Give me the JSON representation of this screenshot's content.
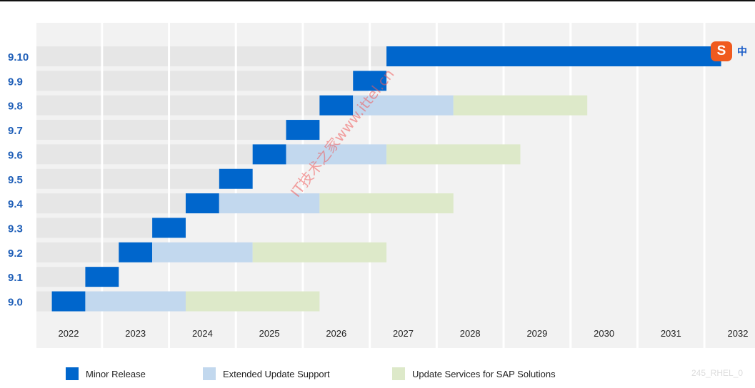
{
  "chart_data": {
    "type": "gantt",
    "title": "",
    "xlabel": "",
    "ylabel": "",
    "x_ticks": [
      "2022",
      "2023",
      "2024",
      "2025",
      "2026",
      "2027",
      "2028",
      "2029",
      "2030",
      "2031",
      "2032"
    ],
    "xlim": [
      2022,
      2032
    ],
    "grid": true,
    "categories": [
      "9.10",
      "9.9",
      "9.8",
      "9.7",
      "9.6",
      "9.5",
      "9.4",
      "9.3",
      "9.2",
      "9.1",
      "9.0"
    ],
    "series": [
      {
        "name": "Minor Release",
        "color": "#0066cc",
        "spans": [
          [
            "9.10",
            2026.75,
            2031.75
          ],
          [
            "9.9",
            2026.25,
            2026.75
          ],
          [
            "9.8",
            2025.75,
            2026.25
          ],
          [
            "9.7",
            2025.25,
            2025.75
          ],
          [
            "9.6",
            2024.75,
            2025.25
          ],
          [
            "9.5",
            2024.25,
            2024.75
          ],
          [
            "9.4",
            2023.75,
            2024.25
          ],
          [
            "9.3",
            2023.25,
            2023.75
          ],
          [
            "9.2",
            2022.75,
            2023.25
          ],
          [
            "9.1",
            2022.25,
            2022.75
          ],
          [
            "9.0",
            2021.75,
            2022.25
          ]
        ]
      },
      {
        "name": "Extended Update Support",
        "color": "#c2d8ee",
        "spans": [
          [
            "9.8",
            2026.25,
            2027.75
          ],
          [
            "9.6",
            2025.25,
            2026.75
          ],
          [
            "9.4",
            2024.25,
            2025.75
          ],
          [
            "9.2",
            2023.25,
            2024.75
          ],
          [
            "9.0",
            2022.25,
            2023.75
          ]
        ]
      },
      {
        "name": "Update Services for SAP Solutions",
        "color": "#dde9c9",
        "spans": [
          [
            "9.8",
            2027.75,
            2029.75
          ],
          [
            "9.6",
            2026.75,
            2028.75
          ],
          [
            "9.4",
            2025.75,
            2027.75
          ],
          [
            "9.2",
            2024.75,
            2026.75
          ],
          [
            "9.0",
            2023.75,
            2025.75
          ]
        ]
      }
    ],
    "colors": {
      "row_background": "#e6e6e6",
      "panel_background": "#f2f2f2",
      "gridline": "#ffffff",
      "version_label": "#1f5fb8"
    }
  },
  "legend": {
    "minor_release": "Minor Release",
    "eus": "Extended Update Support",
    "sap": "Update Services for SAP Solutions"
  },
  "footer_code": "245_RHEL_0",
  "watermark": "IT技术之家www.ittel.cn",
  "ime_badge": {
    "icon": "sogou-s-icon",
    "letter": "S",
    "lang": "中"
  }
}
